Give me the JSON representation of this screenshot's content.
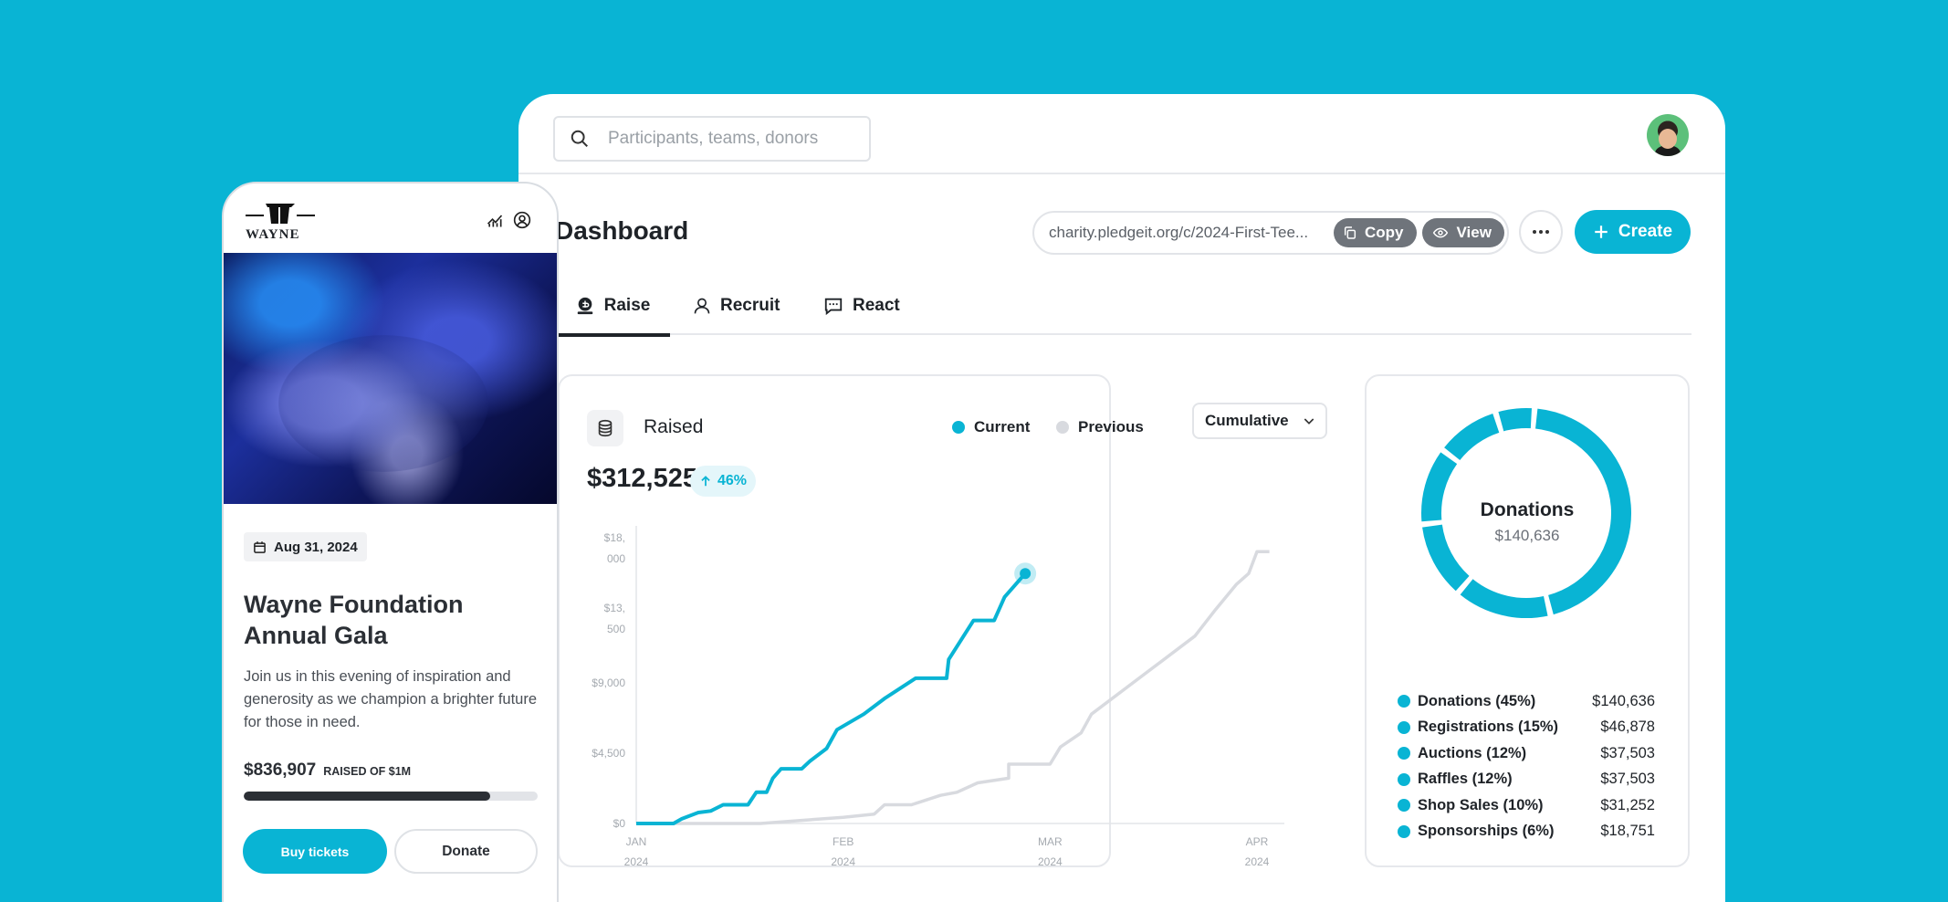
{
  "colors": {
    "accent": "#09B4D4",
    "previous": "#D8DADF",
    "dark": "#2B2F35"
  },
  "search": {
    "placeholder": "Participants, teams, donors",
    "icon": "search-icon"
  },
  "dashboard": {
    "title": "Dashboard",
    "url": "charity.pledgeit.org/c/2024-First-Tee...",
    "copy_label": "Copy",
    "view_label": "View",
    "create_label": "Create",
    "tabs": [
      {
        "label": "Raise",
        "icon": "donate-icon",
        "active": true
      },
      {
        "label": "Recruit",
        "icon": "user-icon",
        "active": false
      },
      {
        "label": "React",
        "icon": "message-icon",
        "active": false
      }
    ]
  },
  "raised": {
    "label": "Raised",
    "amount": "$312,525",
    "change": "46%",
    "legend_current": "Current",
    "legend_previous": "Previous",
    "mode": "Cumulative"
  },
  "chart_data": {
    "type": "line",
    "y_ticks": [
      {
        "line1": "$18,",
        "line2": "000",
        "value": 18000
      },
      {
        "line1": "$13,",
        "line2": "500",
        "value": 13500
      },
      {
        "line1": "$9,000",
        "line2": "",
        "value": 9000
      },
      {
        "line1": "$4,500",
        "line2": "",
        "value": 4500
      },
      {
        "line1": "$0",
        "line2": "",
        "value": 0
      }
    ],
    "x_ticks": [
      {
        "month": "JAN",
        "year": "2024"
      },
      {
        "month": "FEB",
        "year": "2024"
      },
      {
        "month": "MAR",
        "year": "2024"
      },
      {
        "month": "APR",
        "year": "2024"
      }
    ],
    "ylim": [
      0,
      18000
    ],
    "xlim": [
      0,
      3
    ],
    "series": [
      {
        "name": "Current",
        "color": "#09B4D4",
        "points": [
          [
            0,
            0
          ],
          [
            0.18,
            0
          ],
          [
            0.22,
            300
          ],
          [
            0.3,
            700
          ],
          [
            0.36,
            800
          ],
          [
            0.42,
            1200
          ],
          [
            0.54,
            1200
          ],
          [
            0.58,
            2000
          ],
          [
            0.63,
            2000
          ],
          [
            0.66,
            2900
          ],
          [
            0.7,
            3500
          ],
          [
            0.8,
            3500
          ],
          [
            0.84,
            4000
          ],
          [
            0.92,
            4800
          ],
          [
            0.97,
            6000
          ],
          [
            1.1,
            7000
          ],
          [
            1.2,
            8000
          ],
          [
            1.35,
            9300
          ],
          [
            1.5,
            9300
          ],
          [
            1.51,
            10500
          ],
          [
            1.63,
            13000
          ],
          [
            1.73,
            13000
          ],
          [
            1.78,
            14500
          ],
          [
            1.88,
            16000
          ]
        ]
      },
      {
        "name": "Previous",
        "color": "#D8DADF",
        "points": [
          [
            0,
            0
          ],
          [
            0.6,
            0
          ],
          [
            0.8,
            200
          ],
          [
            1.0,
            400
          ],
          [
            1.15,
            600
          ],
          [
            1.2,
            1200
          ],
          [
            1.33,
            1200
          ],
          [
            1.47,
            1800
          ],
          [
            1.55,
            2000
          ],
          [
            1.65,
            2600
          ],
          [
            1.8,
            2900
          ],
          [
            1.8,
            3800
          ],
          [
            2.0,
            3800
          ],
          [
            2.05,
            4900
          ],
          [
            2.15,
            5800
          ],
          [
            2.2,
            7000
          ],
          [
            2.4,
            9000
          ],
          [
            2.5,
            10000
          ],
          [
            2.7,
            12000
          ],
          [
            2.8,
            13700
          ],
          [
            2.9,
            15300
          ],
          [
            2.96,
            16000
          ],
          [
            3.0,
            17400
          ],
          [
            3.06,
            17400
          ]
        ]
      }
    ]
  },
  "donut": {
    "title": "Donations",
    "value": "$140,636",
    "segments": [
      45,
      15,
      12,
      12,
      10,
      6
    ],
    "breakdown": [
      {
        "label": "Donations (45%)",
        "value": "$140,636"
      },
      {
        "label": "Registrations (15%)",
        "value": "$46,878"
      },
      {
        "label": "Auctions (12%)",
        "value": "$37,503"
      },
      {
        "label": "Raffles (12%)",
        "value": "$37,503"
      },
      {
        "label": "Shop Sales (10%)",
        "value": "$31,252"
      },
      {
        "label": "Sponsorships (6%)",
        "value": "$18,751"
      }
    ]
  },
  "phone": {
    "brand": "WAYNE",
    "date": "Aug 31, 2024",
    "title": "Wayne Foundation Annual Gala",
    "description": "Join us in this evening of inspiration and generosity as we champion a brighter future for those in need.",
    "raised": "$836,907",
    "raised_of": "RAISED OF $1M",
    "progress": 0.84,
    "buy_label": "Buy tickets",
    "donate_label": "Donate"
  }
}
